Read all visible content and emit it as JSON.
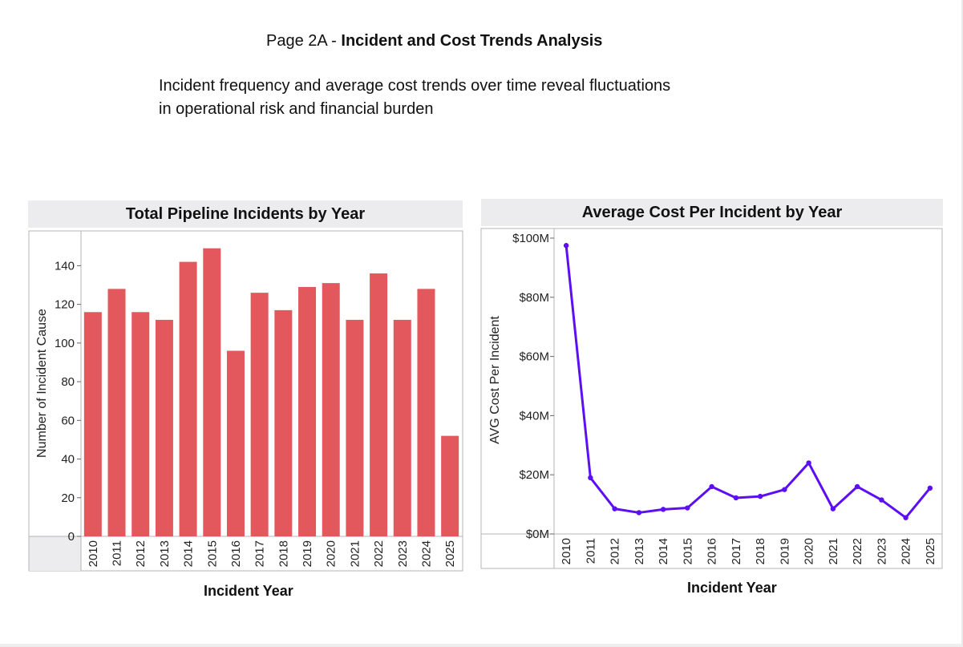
{
  "page": {
    "title_prefix": "Page 2A - ",
    "title_bold": "Incident and Cost Trends Analysis",
    "subtitle": "Incident frequency and average cost trends over time reveal fluctuations in operational risk and financial burden"
  },
  "chart_data": [
    {
      "type": "bar",
      "title": "Total Pipeline Incidents by Year",
      "xlabel": "Incident Year",
      "ylabel": "Number of Incident Cause",
      "categories": [
        "2010",
        "2011",
        "2012",
        "2013",
        "2014",
        "2015",
        "2016",
        "2017",
        "2018",
        "2019",
        "2020",
        "2021",
        "2022",
        "2023",
        "2024",
        "2025"
      ],
      "values": [
        116,
        128,
        116,
        112,
        142,
        149,
        96,
        126,
        117,
        129,
        131,
        112,
        136,
        112,
        128,
        52
      ],
      "ylim": [
        0,
        158
      ],
      "yticks": [
        0,
        20,
        40,
        60,
        80,
        100,
        120,
        140
      ],
      "color": "#e2585c",
      "grid": false
    },
    {
      "type": "line",
      "title": "Average Cost Per Incident by Year",
      "xlabel": "Incident Year",
      "ylabel": "AVG Cost Per Incident",
      "categories": [
        "2010",
        "2011",
        "2012",
        "2013",
        "2014",
        "2015",
        "2016",
        "2017",
        "2018",
        "2019",
        "2020",
        "2021",
        "2022",
        "2023",
        "2024",
        "2025"
      ],
      "values": [
        97.5,
        19,
        8.5,
        7.2,
        8.3,
        8.8,
        16,
        12.2,
        12.7,
        15,
        24,
        8.5,
        16,
        11.5,
        5.5,
        15.5
      ],
      "unit": "millions USD",
      "ylim": [
        0,
        100
      ],
      "yticks": [
        0,
        20,
        40,
        60,
        80,
        100
      ],
      "ytick_labels": [
        "$0M",
        "$20M",
        "$40M",
        "$60M",
        "$80M",
        "$100M"
      ],
      "color": "#5b0ff2",
      "grid": false
    }
  ]
}
